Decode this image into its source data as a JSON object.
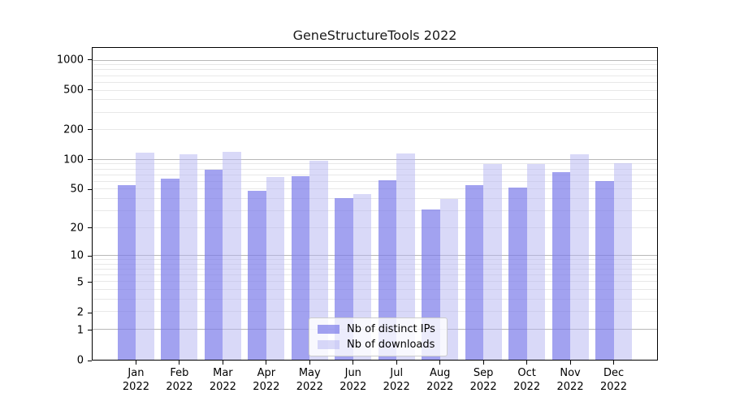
{
  "title": "GeneStructureTools 2022",
  "chart_data": {
    "type": "bar",
    "title": "GeneStructureTools 2022",
    "categories": [
      "Jan 2022",
      "Feb 2022",
      "Mar 2022",
      "Apr 2022",
      "May 2022",
      "Jun 2022",
      "Jul 2022",
      "Aug 2022",
      "Sep 2022",
      "Oct 2022",
      "Nov 2022",
      "Dec 2022"
    ],
    "x_tick_line1": [
      "Jan",
      "Feb",
      "Mar",
      "Apr",
      "May",
      "Jun",
      "Jul",
      "Aug",
      "Sep",
      "Oct",
      "Nov",
      "Dec"
    ],
    "x_tick_line2": "2022",
    "series": [
      {
        "name": "Nb of distinct IPs",
        "color": "rgba(122,122,234,0.7)",
        "values": [
          55,
          64,
          80,
          48,
          68,
          41,
          62,
          31,
          55,
          52,
          75,
          61
        ]
      },
      {
        "name": "Nb of downloads",
        "color": "rgba(179,179,241,0.5)",
        "values": [
          118,
          113,
          121,
          67,
          98,
          45,
          117,
          40,
          90,
          90,
          113,
          92
        ]
      }
    ],
    "yscale": "log1p",
    "ylim": [
      0,
      1340
    ],
    "ytick_values": [
      0,
      1,
      2,
      5,
      10,
      20,
      50,
      100,
      200,
      500,
      1000
    ],
    "grid": "both",
    "grid_major_values": [
      1,
      10,
      100,
      1000
    ],
    "grid_minor_values": [
      2,
      3,
      4,
      5,
      6,
      7,
      8,
      9,
      20,
      30,
      40,
      50,
      60,
      70,
      80,
      90,
      200,
      300,
      400,
      500,
      600,
      700,
      800,
      900
    ],
    "legend": {
      "position": "lower center",
      "items": [
        "Nb of distinct IPs",
        "Nb of downloads"
      ]
    }
  },
  "colors": {
    "background": "#ffffff",
    "axis": "#000000",
    "text": "#1a1a1a",
    "grid_major": "#b8b8b8",
    "grid_minor": "#e8e8e8",
    "bar_distinct_ips": "rgba(122,122,234,0.7)",
    "bar_downloads": "rgba(179,179,241,0.5)",
    "legend_border": "#cccccc"
  }
}
